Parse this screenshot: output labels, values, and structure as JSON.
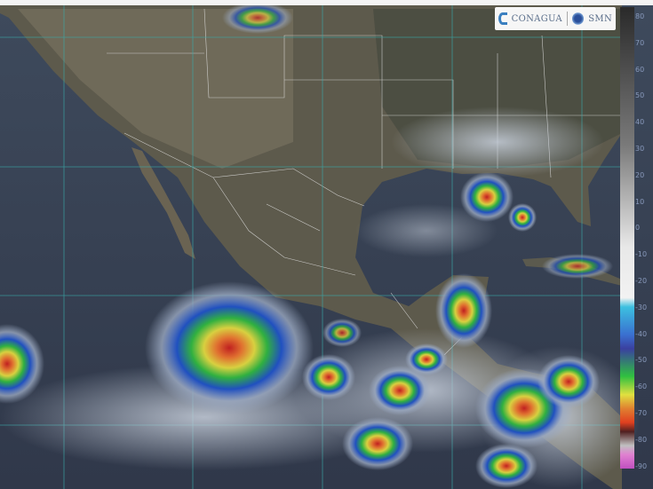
{
  "logos": {
    "left": "CONAGUA",
    "right": "SMN"
  },
  "colorbar": {
    "labels": [
      "80",
      "70",
      "60",
      "50",
      "40",
      "30",
      "20",
      "10",
      "0",
      "-10",
      "-20",
      "-30",
      "-40",
      "-50",
      "-60",
      "-70",
      "-80",
      "-90"
    ],
    "stops": [
      [
        "#2a2a2a",
        0
      ],
      [
        "#7a7a7a",
        0.3
      ],
      [
        "#e8e8e8",
        0.52
      ],
      [
        "#f2f2f2",
        0.63
      ],
      [
        "#3cc0e0",
        0.65
      ],
      [
        "#3a70d0",
        0.71
      ],
      [
        "#3a40a0",
        0.74
      ],
      [
        "#30c040",
        0.8
      ],
      [
        "#e0e040",
        0.84
      ],
      [
        "#e08030",
        0.87
      ],
      [
        "#e04020",
        0.9
      ],
      [
        "#502020",
        0.92
      ],
      [
        "#c0c0c0",
        0.95
      ],
      [
        "#e080d0",
        0.97
      ],
      [
        "#c050c0",
        1
      ]
    ]
  }
}
